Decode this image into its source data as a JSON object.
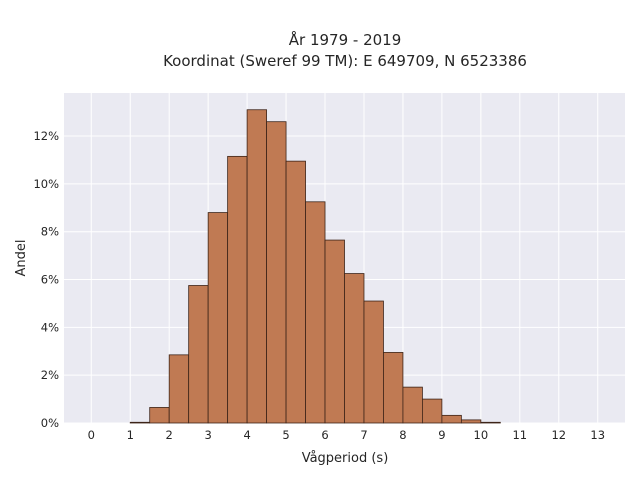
{
  "chart_data": {
    "type": "bar",
    "title_line1": "År 1979 - 2019",
    "title_line2": "Koordinat (Sweref 99 TM): E 649709, N 6523386",
    "xlabel": "Vågperiod (s)",
    "ylabel": "Andel",
    "bin_width": 0.5,
    "bins": [
      {
        "start": 1.0,
        "value": 0.03
      },
      {
        "start": 1.5,
        "value": 0.65
      },
      {
        "start": 2.0,
        "value": 2.85
      },
      {
        "start": 2.5,
        "value": 5.75
      },
      {
        "start": 3.0,
        "value": 8.8
      },
      {
        "start": 3.5,
        "value": 11.15
      },
      {
        "start": 4.0,
        "value": 13.1
      },
      {
        "start": 4.5,
        "value": 12.6
      },
      {
        "start": 5.0,
        "value": 10.95
      },
      {
        "start": 5.5,
        "value": 9.25
      },
      {
        "start": 6.0,
        "value": 7.65
      },
      {
        "start": 6.5,
        "value": 6.25
      },
      {
        "start": 7.0,
        "value": 5.1
      },
      {
        "start": 7.5,
        "value": 2.95
      },
      {
        "start": 8.0,
        "value": 1.5
      },
      {
        "start": 8.5,
        "value": 1.0
      },
      {
        "start": 9.0,
        "value": 0.32
      },
      {
        "start": 9.5,
        "value": 0.13
      },
      {
        "start": 10.0,
        "value": 0.03
      }
    ],
    "x_ticks": [
      "0",
      "1",
      "2",
      "3",
      "4",
      "5",
      "6",
      "7",
      "8",
      "9",
      "10",
      "11",
      "12",
      "13"
    ],
    "y_ticks": [
      "0%",
      "2%",
      "4%",
      "6%",
      "8%",
      "10%",
      "12%"
    ],
    "xlim": [
      -0.7,
      13.7
    ],
    "ylim": [
      0,
      13.8
    ],
    "grid": true,
    "colors": {
      "bar_fill": "#c07a53",
      "bar_edge": "#3d2418",
      "plot_bg": "#eaeaf2",
      "grid": "#ffffff"
    }
  }
}
